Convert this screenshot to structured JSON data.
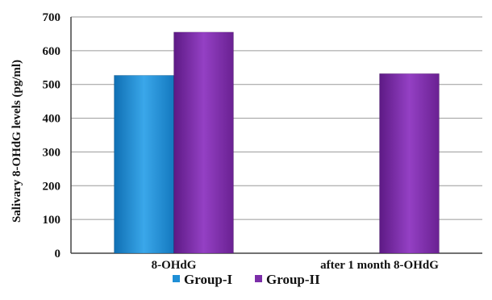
{
  "chart_data": {
    "type": "bar",
    "categories": [
      "8-OHdG",
      "after 1 month 8-OHdG"
    ],
    "series": [
      {
        "name": "Group-I",
        "values": [
          527,
          null
        ]
      },
      {
        "name": "Group-II",
        "values": [
          655,
          532
        ]
      }
    ],
    "title": "",
    "xlabel": "",
    "ylabel": "Salivary 8-OHdG levels (pg/ml)",
    "ylim": [
      0,
      700
    ],
    "yticks": [
      0,
      100,
      200,
      300,
      400,
      500,
      600,
      700
    ],
    "grid": true,
    "legend": "bottom",
    "colors": {
      "Group-I": "#1f8fd6",
      "Group-II": "#7b2ea8"
    }
  }
}
